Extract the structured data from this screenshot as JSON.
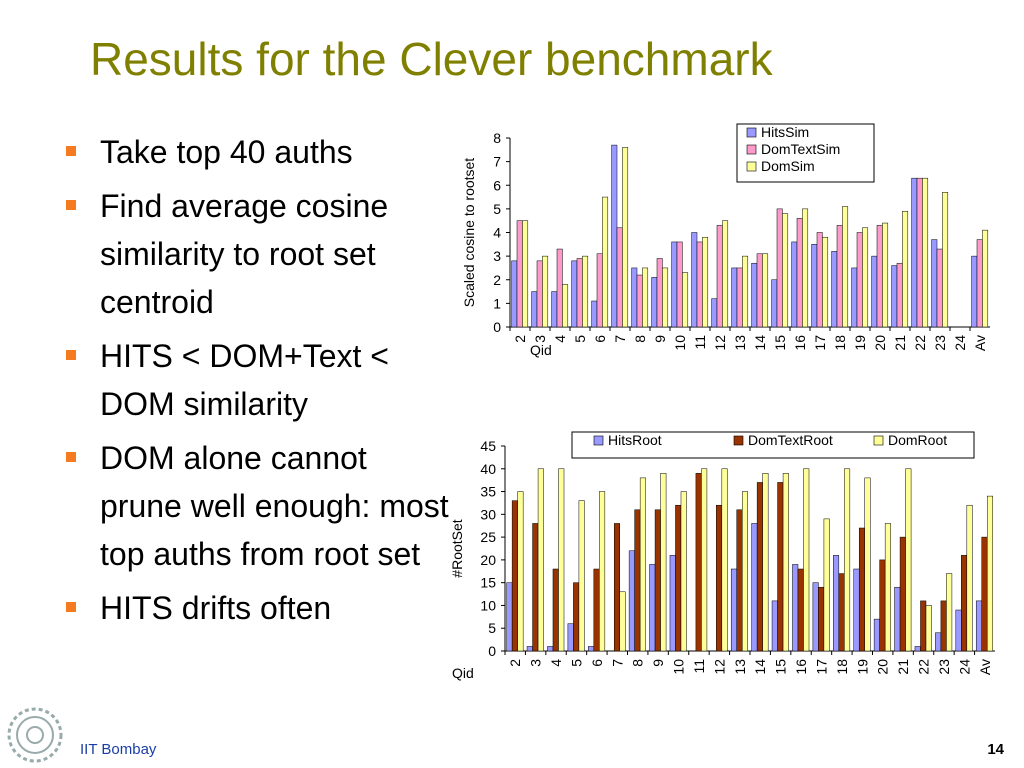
{
  "slide": {
    "title": "Results for the Clever benchmark",
    "bullets": [
      "Take top 40 auths",
      "Find average cosine similarity to root set centroid",
      "HITS < DOM+Text < DOM similarity",
      "DOM alone cannot prune well enough: most top auths from root set",
      "HITS drifts often"
    ],
    "footer": "IIT Bombay",
    "page_number": "14"
  },
  "colors": {
    "title": "#808000",
    "bullet_marker": "#f47b20",
    "footer": "#1a3ea8"
  },
  "chart_data": [
    {
      "type": "bar",
      "ylabel": "Scaled cosine to rootset",
      "xlabel": "Qid",
      "ylim": [
        0,
        8
      ],
      "yticks": [
        0,
        1,
        2,
        3,
        4,
        5,
        6,
        7,
        8
      ],
      "legend_position": "top-right",
      "categories": [
        "2",
        "3",
        "4",
        "5",
        "6",
        "7",
        "8",
        "9",
        "10",
        "11",
        "12",
        "13",
        "14",
        "15",
        "16",
        "17",
        "18",
        "19",
        "20",
        "21",
        "22",
        "23",
        "24",
        "Av"
      ],
      "series": [
        {
          "name": "HitsSim",
          "color": "#9999ff",
          "values": [
            2.8,
            1.5,
            1.5,
            2.8,
            1.1,
            7.7,
            2.5,
            2.1,
            3.6,
            4.0,
            1.2,
            2.5,
            2.7,
            2.0,
            3.6,
            3.5,
            3.2,
            2.5,
            3.0,
            2.6,
            6.3,
            3.7,
            0,
            3.0
          ]
        },
        {
          "name": "DomTextSim",
          "color": "#ff99cc",
          "values": [
            4.5,
            2.8,
            3.3,
            2.9,
            3.1,
            4.2,
            2.2,
            2.9,
            3.6,
            3.6,
            4.3,
            2.5,
            3.1,
            5.0,
            4.6,
            4.0,
            4.3,
            4.0,
            4.3,
            2.7,
            6.3,
            3.3,
            0,
            3.7
          ]
        },
        {
          "name": "DomSim",
          "color": "#ffff99",
          "values": [
            4.5,
            3.0,
            1.8,
            3.0,
            5.5,
            7.6,
            2.5,
            2.5,
            2.3,
            3.8,
            4.5,
            3.0,
            3.1,
            4.8,
            5.0,
            3.8,
            5.1,
            4.2,
            4.4,
            4.9,
            6.3,
            5.7,
            0,
            4.1
          ]
        }
      ]
    },
    {
      "type": "bar",
      "ylabel": "#RootSet",
      "xlabel": "Qid",
      "ylim": [
        0,
        45
      ],
      "yticks": [
        0,
        5,
        10,
        15,
        20,
        25,
        30,
        35,
        40,
        45
      ],
      "legend_position": "top",
      "categories": [
        "2",
        "3",
        "4",
        "5",
        "6",
        "7",
        "8",
        "9",
        "10",
        "11",
        "12",
        "13",
        "14",
        "15",
        "16",
        "17",
        "18",
        "19",
        "20",
        "21",
        "22",
        "23",
        "24",
        "Av"
      ],
      "series": [
        {
          "name": "HitsRoot",
          "color": "#9999ff",
          "values": [
            15,
            1,
            1,
            6,
            1,
            0,
            22,
            19,
            21,
            0,
            0,
            18,
            28,
            11,
            19,
            15,
            21,
            18,
            7,
            14,
            1,
            4,
            9,
            11
          ]
        },
        {
          "name": "DomTextRoot",
          "color": "#993300",
          "values": [
            33,
            28,
            18,
            15,
            18,
            28,
            31,
            31,
            32,
            39,
            32,
            31,
            37,
            37,
            18,
            14,
            17,
            27,
            20,
            25,
            11,
            11,
            21,
            25
          ]
        },
        {
          "name": "DomRoot",
          "color": "#ffff99",
          "values": [
            35,
            40,
            40,
            33,
            35,
            13,
            38,
            39,
            35,
            40,
            40,
            35,
            39,
            39,
            40,
            29,
            40,
            38,
            28,
            40,
            10,
            17,
            32,
            34
          ]
        }
      ]
    }
  ]
}
